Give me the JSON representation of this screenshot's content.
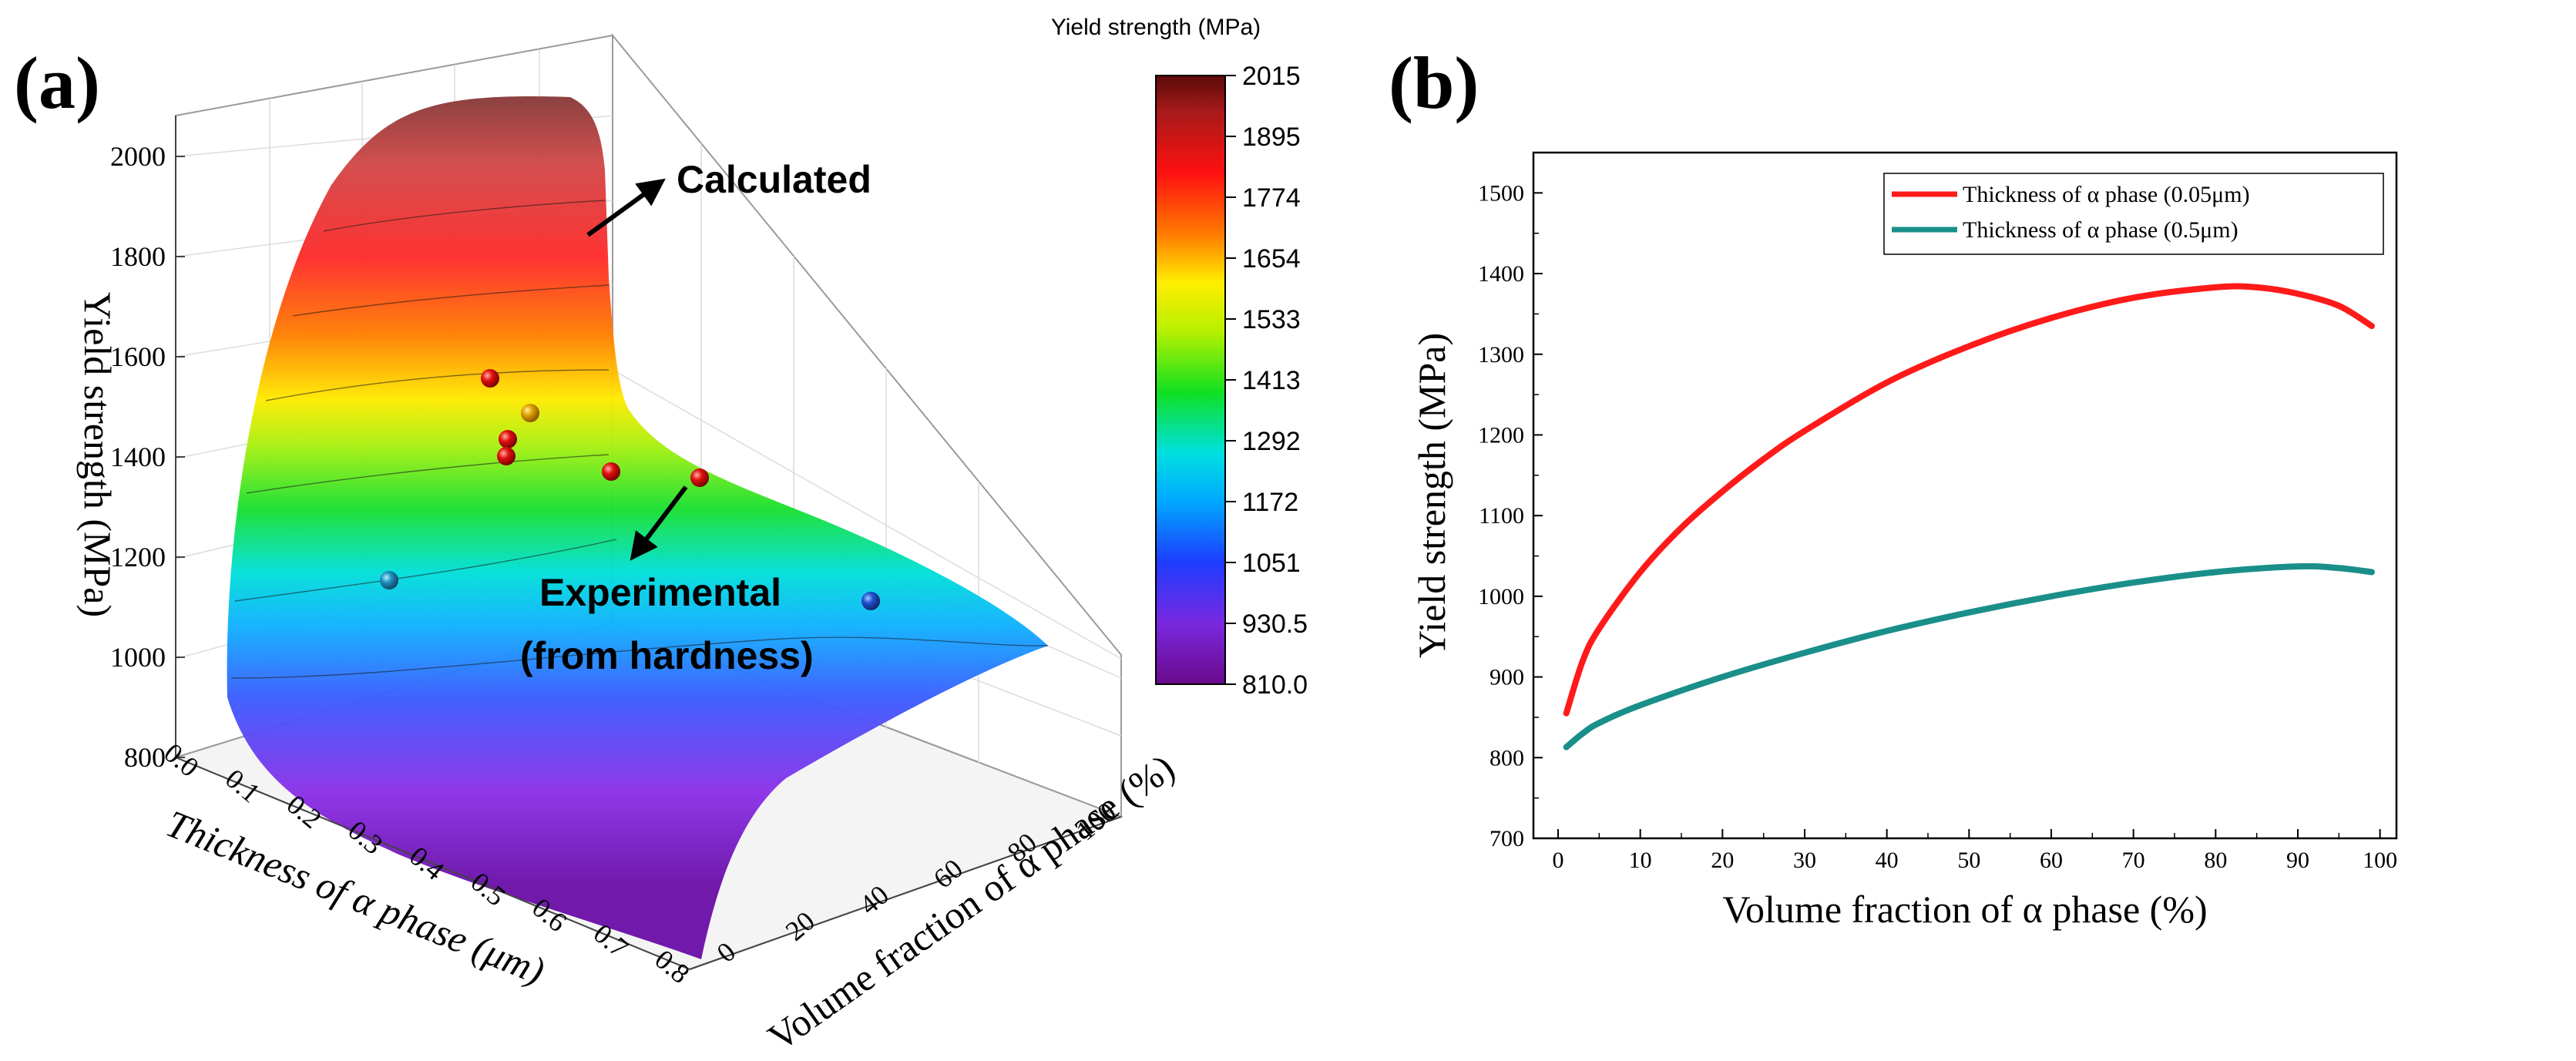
{
  "panel_a": {
    "label": "(a)",
    "annotations": {
      "calculated": "Calculated",
      "experimental_line1": "Experimental",
      "experimental_line2": "(from hardness)"
    },
    "colorbar": {
      "title": "Yield strength (MPa)",
      "ticks": [
        "2015",
        "1895",
        "1774",
        "1654",
        "1533",
        "1413",
        "1292",
        "1172",
        "1051",
        "930.5",
        "810.0"
      ]
    }
  },
  "panel_b": {
    "label": "(b)"
  },
  "chart_data": [
    {
      "type": "surface",
      "title": "",
      "zlabel": "Yield strength (MPa)",
      "xlabel": "Thickness of α phase (μm)",
      "ylabel": "Volume fraction of α phase (%)",
      "z_ticks": [
        "800",
        "1000",
        "1200",
        "1400",
        "1600",
        "1800",
        "2000"
      ],
      "x_ticks": [
        "0.0",
        "0.1",
        "0.2",
        "0.3",
        "0.4",
        "0.5",
        "0.6",
        "0.7",
        "0.8"
      ],
      "y_ticks": [
        "0",
        "20",
        "40",
        "60",
        "80",
        "100"
      ],
      "zlim": [
        800,
        2015
      ],
      "experimental_points": [
        1580,
        1500,
        1455,
        1420,
        1390,
        1375,
        1190,
        1140
      ]
    },
    {
      "type": "line",
      "title": "",
      "xlabel": "Volume fraction of α  phase (%)",
      "ylabel": "Yield strength (MPa)",
      "xlim": [
        -3,
        102
      ],
      "ylim": [
        700,
        1550
      ],
      "x_ticks": [
        "0",
        "10",
        "20",
        "30",
        "40",
        "50",
        "60",
        "70",
        "80",
        "90",
        "100"
      ],
      "y_ticks": [
        "700",
        "800",
        "900",
        "1000",
        "1100",
        "1200",
        "1300",
        "1400",
        "1500"
      ],
      "legend_position": "top-right",
      "series": [
        {
          "name": "Thickness of α  phase (0.05μm)",
          "color": "#ff1a1a",
          "x": [
            1,
            3,
            5,
            10,
            15,
            20,
            25,
            30,
            40,
            50,
            60,
            70,
            80,
            85,
            90,
            95,
            99
          ],
          "y": [
            855,
            920,
            960,
            1030,
            1085,
            1130,
            1170,
            1205,
            1265,
            1310,
            1345,
            1370,
            1383,
            1383,
            1375,
            1360,
            1335
          ]
        },
        {
          "name": "Thickness of α  phase (0.5μm)",
          "color": "#1a8f8a",
          "x": [
            1,
            3,
            5,
            10,
            20,
            30,
            40,
            50,
            60,
            70,
            80,
            90,
            95,
            99
          ],
          "y": [
            813,
            830,
            843,
            865,
            900,
            930,
            957,
            980,
            1000,
            1017,
            1030,
            1037,
            1035,
            1030
          ]
        }
      ]
    }
  ]
}
